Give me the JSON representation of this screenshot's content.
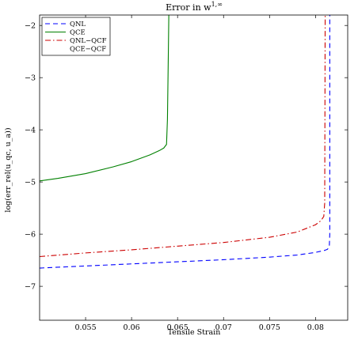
{
  "chart_data": {
    "type": "line",
    "title_text": "Error in w",
    "title_superscript": "1,∞",
    "xlabel": "Tensile Strain",
    "ylabel": "log(err_rel(u_qc, u_a))",
    "xlim": [
      0.05,
      0.0835
    ],
    "ylim": [
      -7.65,
      -1.8
    ],
    "xticks": [
      0.055,
      0.06,
      0.065,
      0.07,
      0.075,
      0.08
    ],
    "xtick_labels": [
      "0.055",
      "0.06",
      "0.065",
      "0.07",
      "0.075",
      "0.08"
    ],
    "yticks": [
      -7,
      -6,
      -5,
      -4,
      -3,
      -2
    ],
    "ytick_labels": [
      "−7",
      "−6",
      "−5",
      "−4",
      "−3",
      "−2"
    ],
    "grid": false,
    "legend_position": "top-left",
    "series": [
      {
        "name": "QNL",
        "color": "#0000ff",
        "dash": "dashed",
        "x": [
          0.05,
          0.055,
          0.06,
          0.065,
          0.07,
          0.075,
          0.078,
          0.08,
          0.081,
          0.0813,
          0.0815,
          0.08155,
          0.08155
        ],
        "y": [
          -6.65,
          -6.61,
          -6.57,
          -6.53,
          -6.49,
          -6.44,
          -6.4,
          -6.35,
          -6.31,
          -6.29,
          -6.24,
          -6.0,
          -1.8
        ]
      },
      {
        "name": "QCE",
        "color": "#008000",
        "dash": "solid",
        "x": [
          0.05,
          0.052,
          0.055,
          0.058,
          0.06,
          0.062,
          0.063,
          0.0635,
          0.0638,
          0.0639,
          0.064,
          0.06405
        ],
        "y": [
          -4.98,
          -4.93,
          -4.84,
          -4.71,
          -4.61,
          -4.48,
          -4.4,
          -4.35,
          -4.28,
          -3.8,
          -2.5,
          -1.8
        ]
      },
      {
        "name": "QNL−QCF",
        "color": "#cc0000",
        "dash": "dashdot",
        "x": [
          0.05,
          0.055,
          0.06,
          0.065,
          0.07,
          0.075,
          0.078,
          0.08,
          0.0806,
          0.0809,
          0.081,
          0.08105
        ],
        "y": [
          -6.43,
          -6.36,
          -6.3,
          -6.23,
          -6.16,
          -6.06,
          -5.96,
          -5.82,
          -5.74,
          -5.66,
          -5.4,
          -1.8
        ]
      },
      {
        "name": "QCE−QCF",
        "color": "#ffffff",
        "dash": "solid",
        "x": [],
        "y": []
      }
    ]
  }
}
